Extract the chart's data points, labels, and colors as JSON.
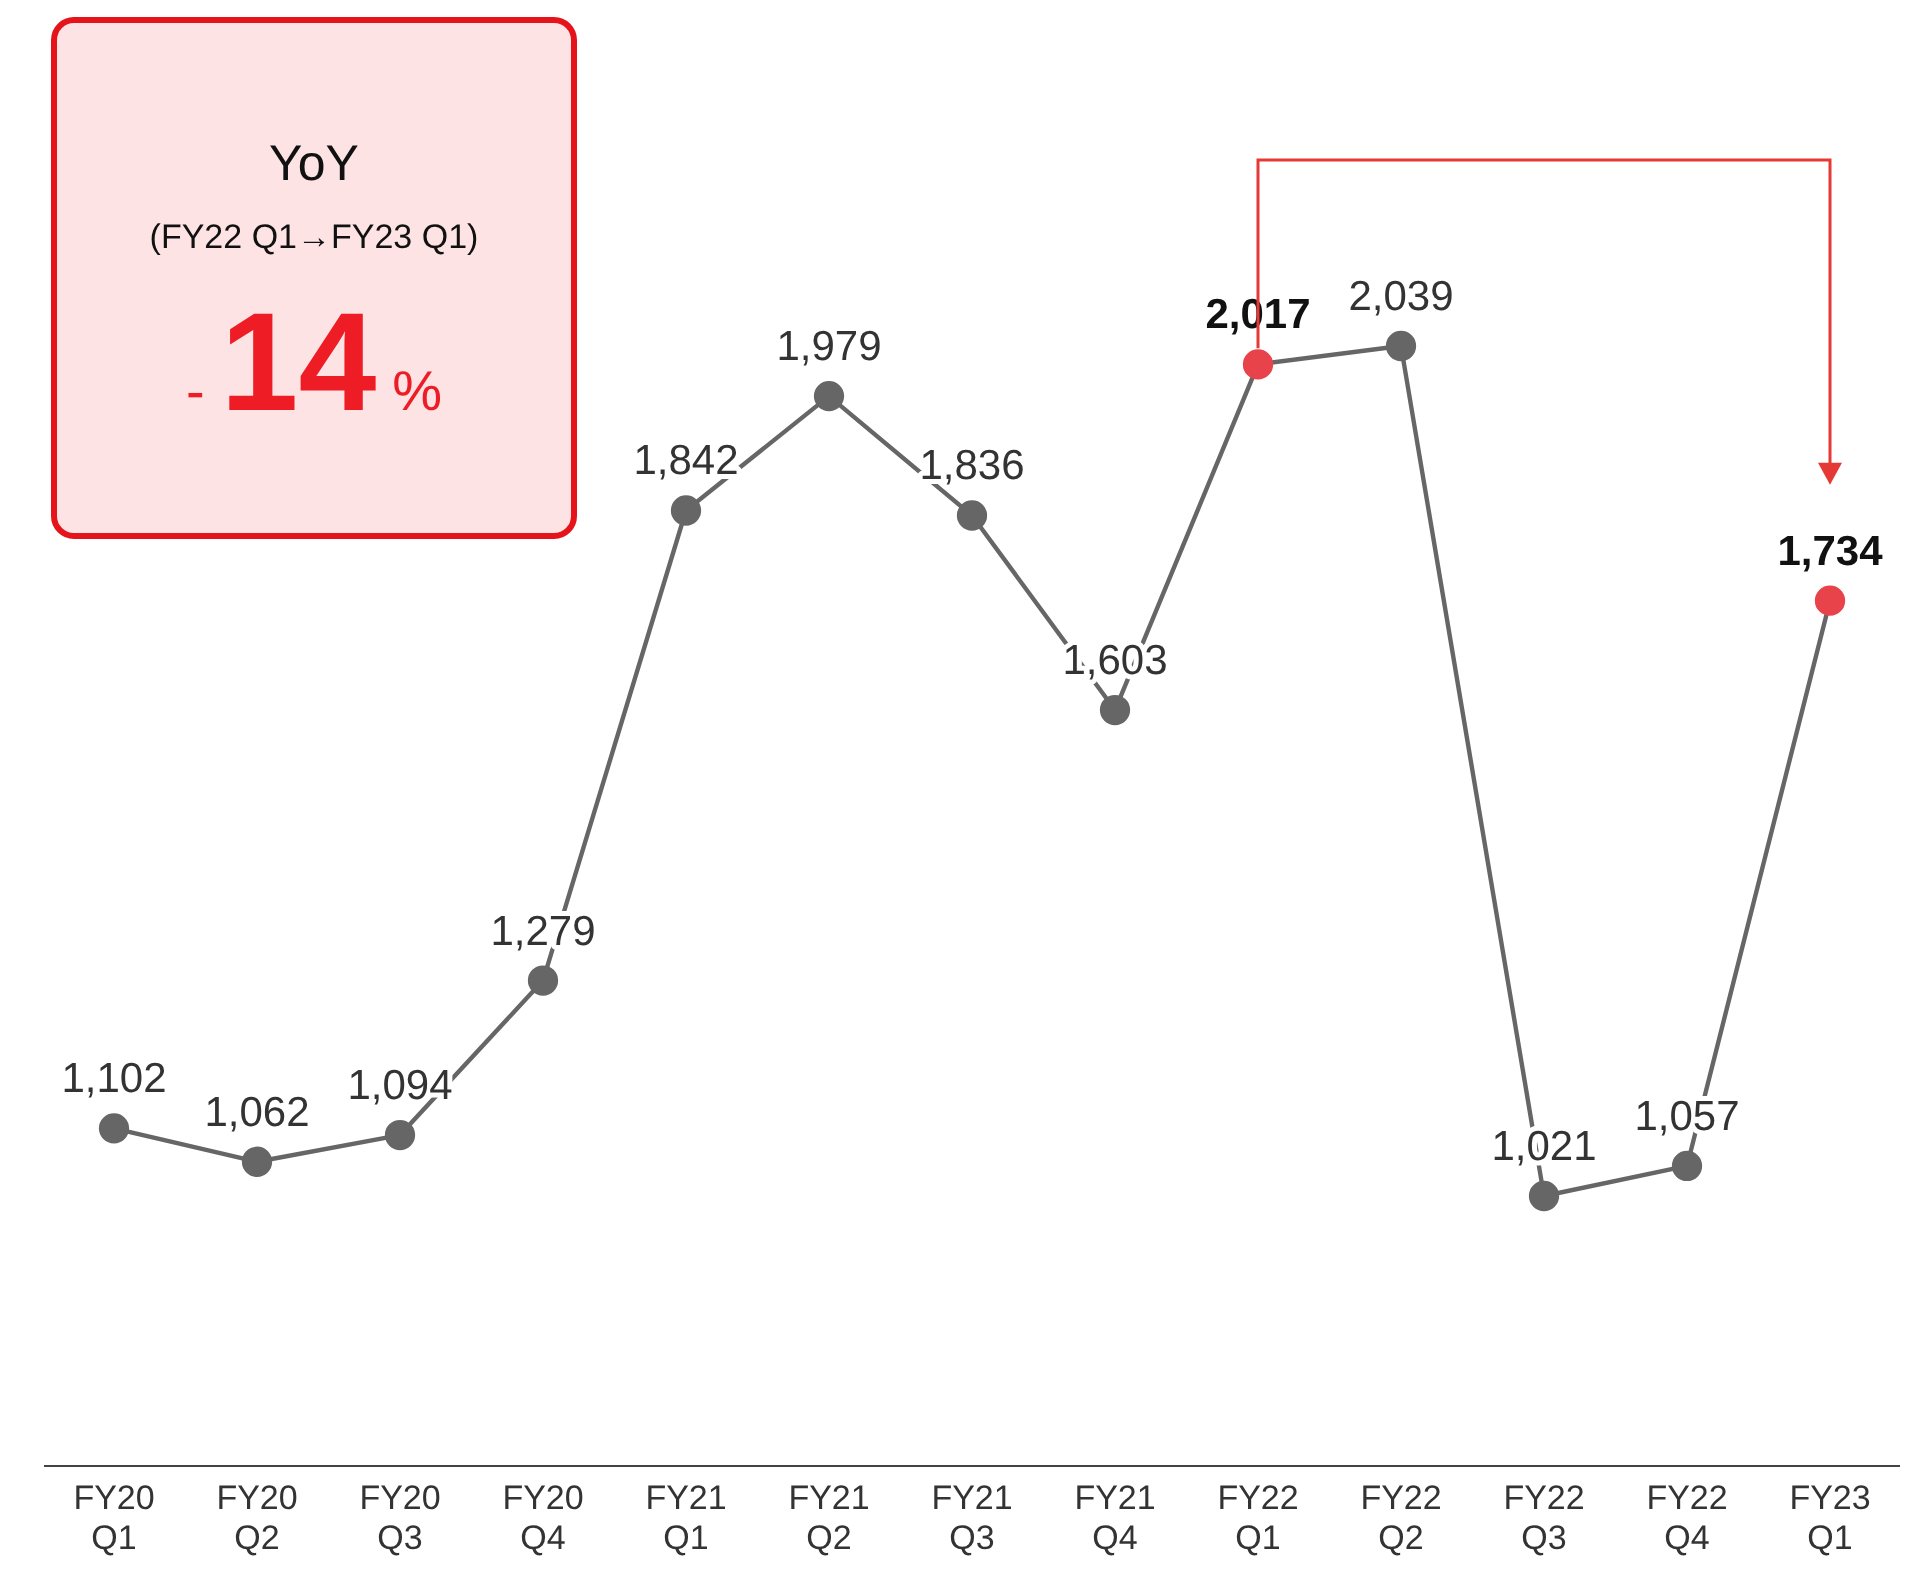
{
  "chart_data": {
    "type": "line",
    "categories": [
      "FY20 Q1",
      "FY20 Q2",
      "FY20 Q3",
      "FY20 Q4",
      "FY21 Q1",
      "FY21 Q2",
      "FY21 Q3",
      "FY21 Q4",
      "FY22 Q1",
      "FY22 Q2",
      "FY22 Q3",
      "FY22 Q4",
      "FY23 Q1"
    ],
    "series": [
      {
        "color": "#666666",
        "values": [
          1102,
          1062,
          1094,
          1279,
          1842,
          1979,
          1836,
          1603,
          2017,
          2039,
          1021,
          1057,
          1734
        ],
        "value_labels": [
          "1,102",
          "1,062",
          "1,094",
          "1,279",
          "1,842",
          "1,979",
          "1,836",
          "1,603",
          "2,017",
          "2,039",
          "1,021",
          "1,057",
          "1,734"
        ],
        "colors": [
          "#666666",
          "#666666",
          "#666666",
          "#666666",
          "#666666",
          "#666666",
          "#666666",
          "#666666",
          "#e8434a",
          "#666666",
          "#666666",
          "#666666",
          "#e8434a"
        ]
      }
    ],
    "marker": "circle",
    "line_style": "solid",
    "grid": false,
    "annotations": [
      "YoY",
      "(FY22 Q1→FY23 Q1)",
      "-14%"
    ]
  }
}
